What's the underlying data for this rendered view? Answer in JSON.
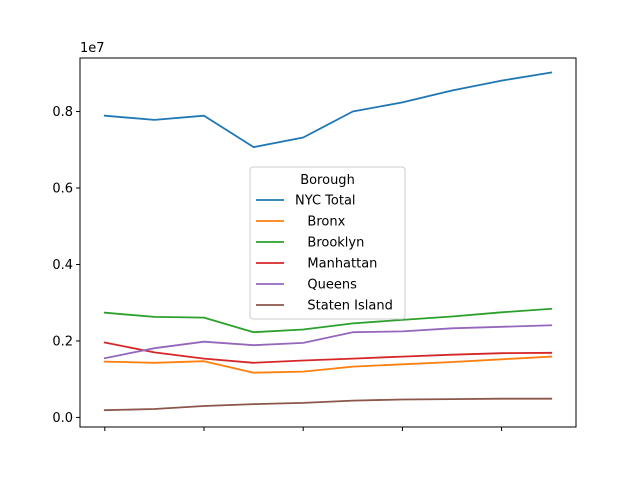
{
  "chart_data": {
    "type": "line",
    "title": "",
    "xlabel": "",
    "ylabel": "",
    "offset_label": "1e7",
    "x": [
      0,
      1,
      2,
      3,
      4,
      5,
      6,
      7,
      8,
      9
    ],
    "xlim": [
      -0.5,
      9.5
    ],
    "x_ticks": [
      0,
      2,
      4,
      6,
      8
    ],
    "ylim": [
      -0.025,
      0.94
    ],
    "y_ticks": [
      0.0,
      0.2,
      0.4,
      0.6,
      0.8
    ],
    "y_tick_labels": [
      "0.0",
      "0.2",
      "0.4",
      "0.6",
      "0.8"
    ],
    "grid": false,
    "legend": {
      "title": "Borough",
      "position": "center"
    },
    "series": [
      {
        "name": "NYC Total",
        "color": "#1f77b4",
        "values": [
          0.789,
          0.778,
          0.789,
          0.707,
          0.732,
          0.8,
          0.824,
          0.855,
          0.881,
          0.902
        ]
      },
      {
        "name": "   Bronx",
        "color": "#ff7f0e",
        "values": [
          0.146,
          0.143,
          0.147,
          0.117,
          0.12,
          0.133,
          0.139,
          0.145,
          0.152,
          0.159
        ]
      },
      {
        "name": "   Brooklyn",
        "color": "#2ca02c",
        "values": [
          0.274,
          0.263,
          0.261,
          0.223,
          0.23,
          0.246,
          0.255,
          0.264,
          0.275,
          0.284
        ]
      },
      {
        "name": "   Manhattan",
        "color": "#d62728",
        "values": [
          0.196,
          0.17,
          0.154,
          0.143,
          0.149,
          0.154,
          0.159,
          0.164,
          0.168,
          0.169
        ]
      },
      {
        "name": "   Queens",
        "color": "#9467bd",
        "values": [
          0.155,
          0.181,
          0.198,
          0.189,
          0.195,
          0.223,
          0.225,
          0.233,
          0.237,
          0.241
        ]
      },
      {
        "name": "   Staten Island",
        "color": "#8c564b",
        "values": [
          0.019,
          0.022,
          0.03,
          0.035,
          0.038,
          0.044,
          0.047,
          0.048,
          0.049,
          0.049
        ]
      }
    ]
  }
}
